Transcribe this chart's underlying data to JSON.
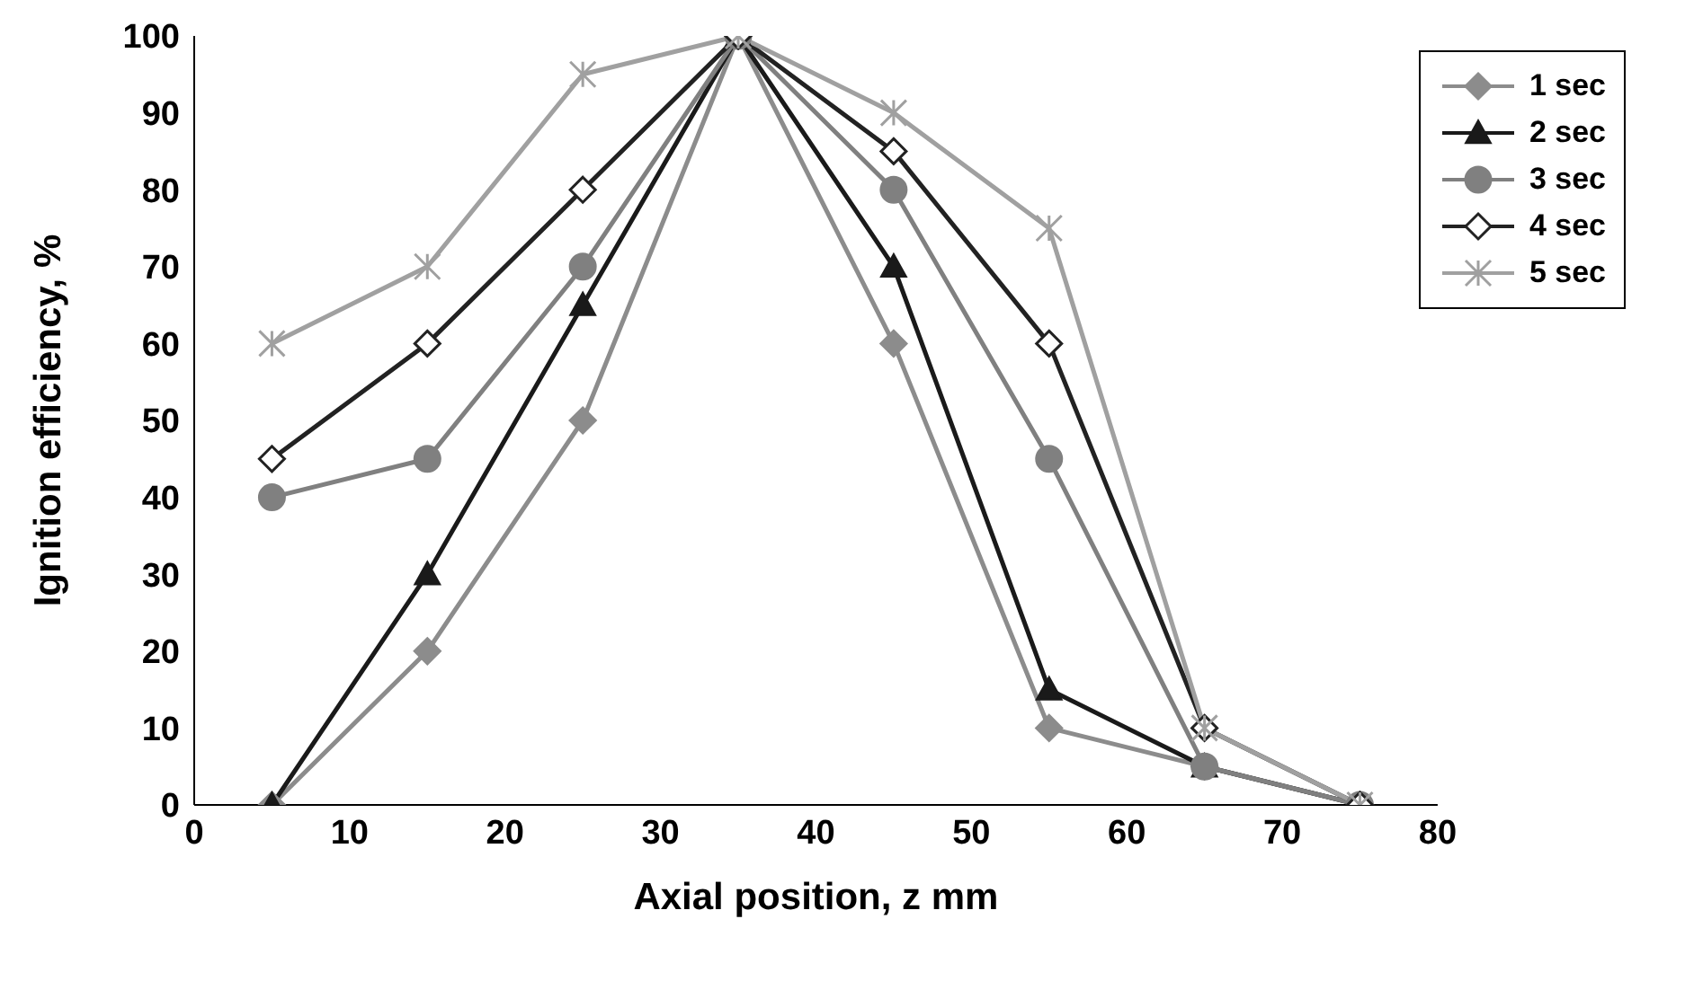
{
  "chart_data": {
    "type": "line",
    "xlabel": "Axial position,  z  mm",
    "ylabel": "Ignition efficiency,  %",
    "x": [
      5,
      15,
      25,
      35,
      45,
      55,
      65,
      75
    ],
    "series": [
      {
        "name": "1 sec",
        "color": "#8c8c8c",
        "marker": "diamond",
        "values": [
          0,
          20,
          50,
          100,
          60,
          10,
          5,
          0
        ]
      },
      {
        "name": "2 sec",
        "color": "#1a1a1a",
        "marker": "triangle",
        "values": [
          0,
          30,
          65,
          100,
          70,
          15,
          5,
          0
        ]
      },
      {
        "name": "3 sec",
        "color": "#808080",
        "marker": "circle",
        "values": [
          40,
          45,
          70,
          100,
          80,
          45,
          5,
          0
        ]
      },
      {
        "name": "4 sec",
        "color": "#222222",
        "marker": "diamond",
        "values": [
          45,
          60,
          80,
          100,
          85,
          60,
          10,
          0
        ]
      },
      {
        "name": "5 sec",
        "color": "#a0a0a0",
        "marker": "cross",
        "values": [
          60,
          70,
          95,
          100,
          90,
          75,
          10,
          0
        ]
      }
    ],
    "xlim": [
      0,
      80
    ],
    "xticks": [
      0,
      10,
      20,
      30,
      40,
      50,
      60,
      70,
      80
    ],
    "ylim": [
      0,
      100
    ],
    "yticks": [
      0,
      10,
      20,
      30,
      40,
      50,
      60,
      70,
      80,
      90,
      100
    ],
    "grid": false,
    "legend": "top right",
    "line_style": "solid"
  }
}
